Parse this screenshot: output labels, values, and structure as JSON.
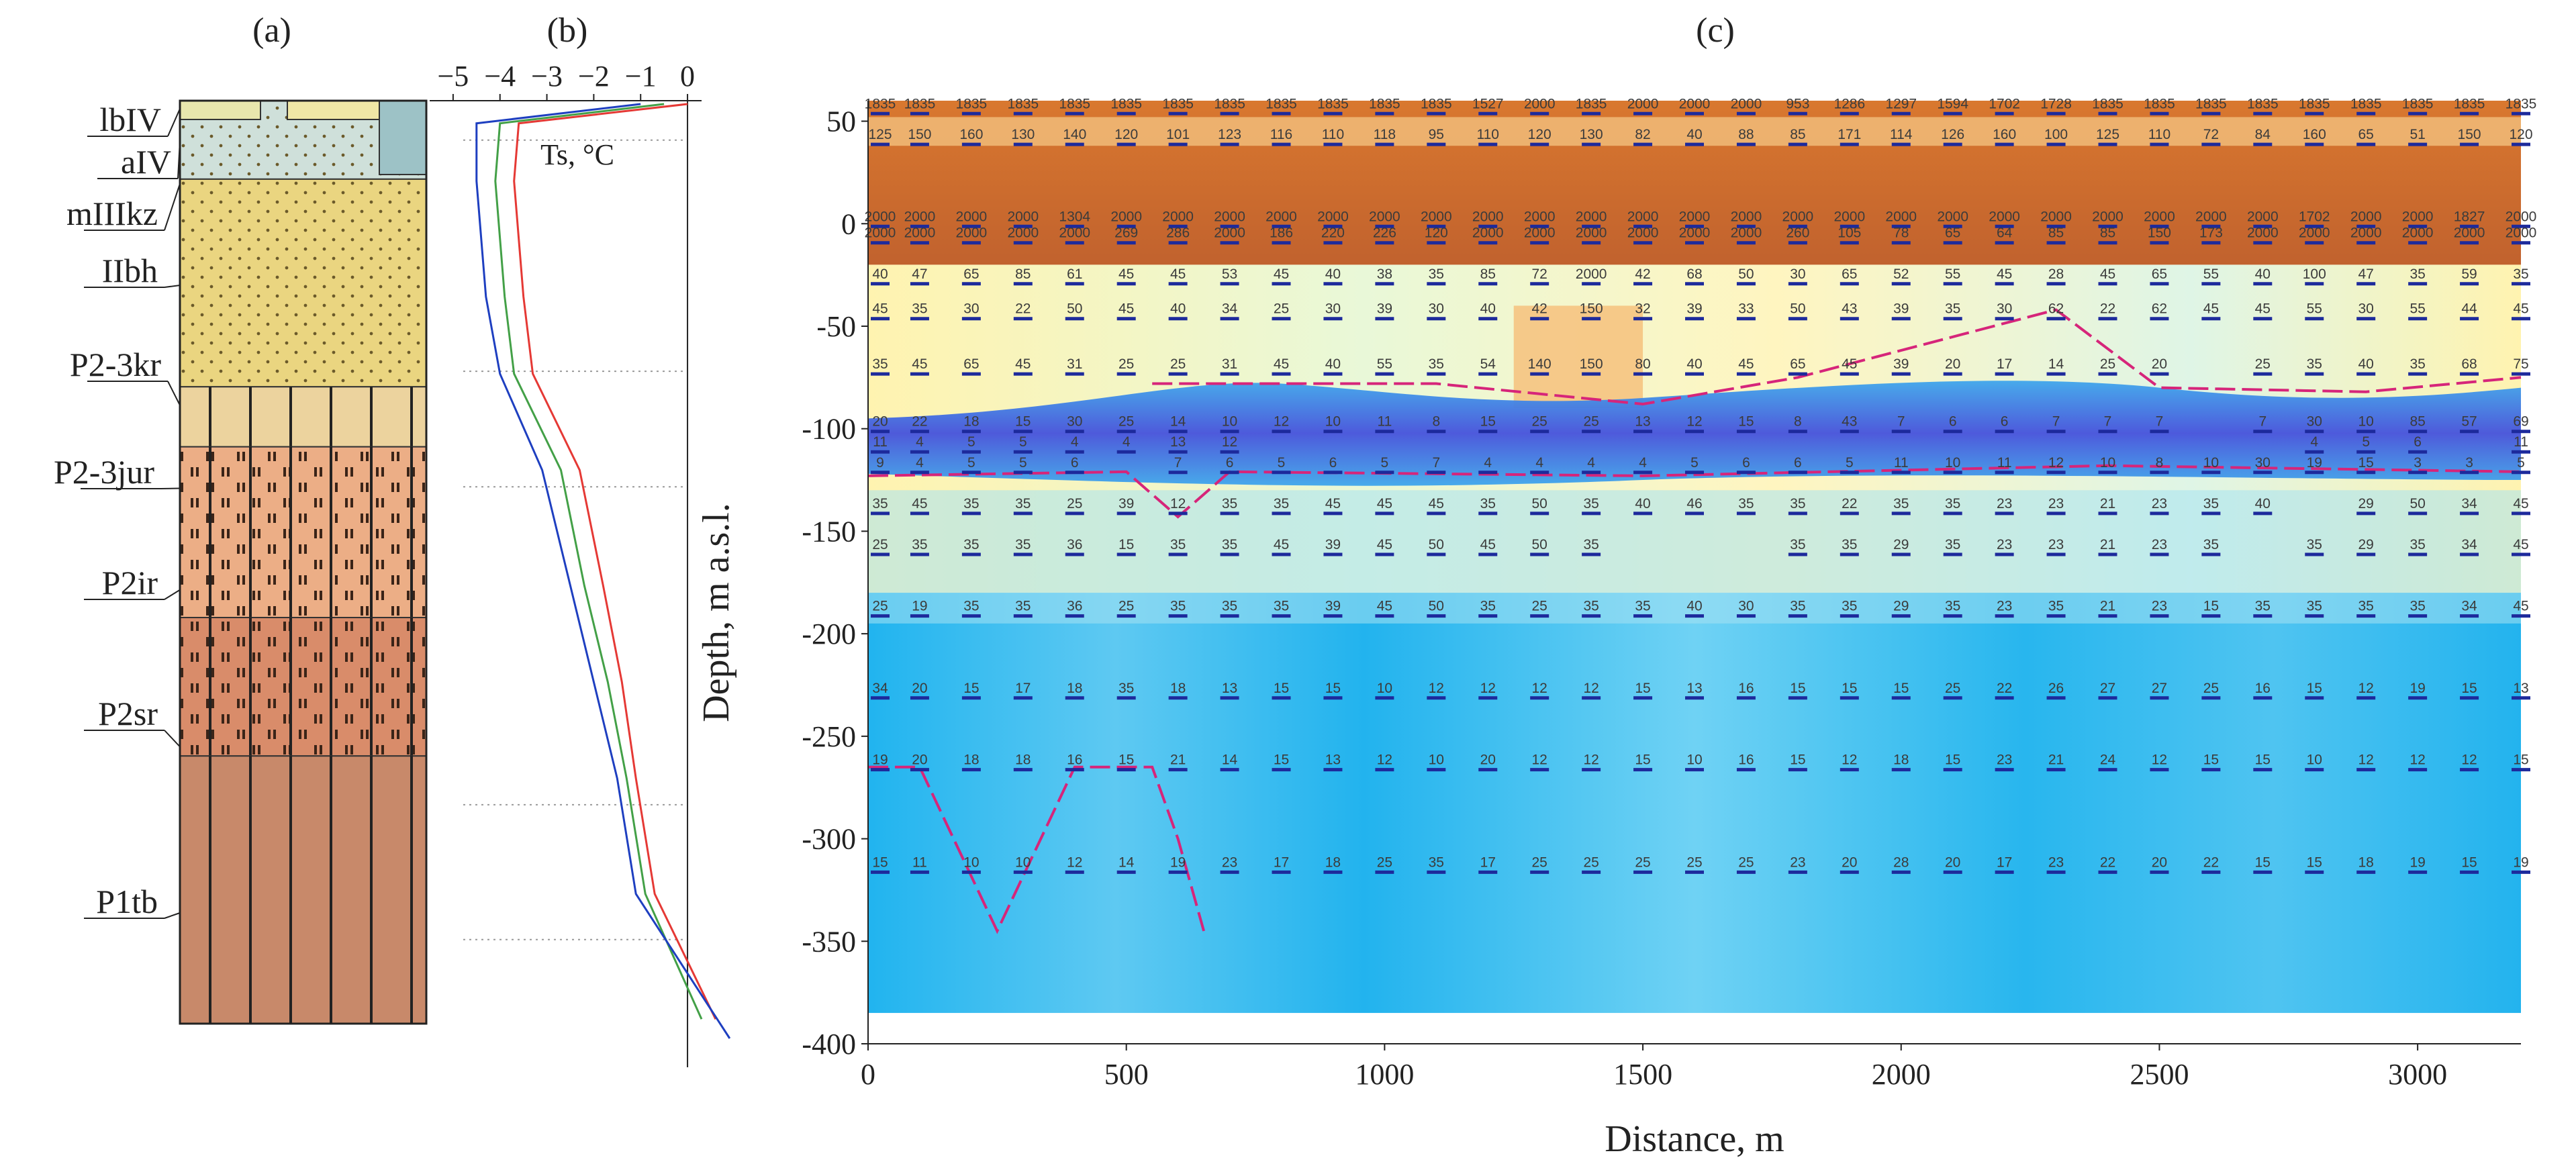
{
  "panel_labels": {
    "a": "(a)",
    "b": "(b)",
    "c": "(c)"
  },
  "colors": {
    "permafrost_frozen": "#c1622e",
    "thawed_low": "#2aa9e8",
    "intermediate": "#fff7b3",
    "cryopeg_dark": "#4a4ce0",
    "boundary_marker": "#d6257a",
    "layer_marker": "#1d2a9c"
  },
  "stratigraphy": {
    "layers": [
      {
        "code": "lbIV",
        "top_rel": 0.0,
        "bottom_rel": 0.02,
        "fill": "#cfe0da"
      },
      {
        "code": "aIV",
        "top_rel": 0.0,
        "bottom_rel": 0.085,
        "fill": "#cfe0da"
      },
      {
        "code": "mIIIkz",
        "top_rel": 0.085,
        "bottom_rel": 0.135,
        "fill": "#ead580"
      },
      {
        "code": "IIbh",
        "top_rel": 0.135,
        "bottom_rel": 0.31,
        "fill": "#ead580"
      },
      {
        "code": "P2-3kr",
        "top_rel": 0.31,
        "bottom_rel": 0.375,
        "fill": "#ecd39e"
      },
      {
        "code": "P2-3jur",
        "top_rel": 0.375,
        "bottom_rel": 0.5,
        "fill": "#ecae86"
      },
      {
        "code": "P2ir",
        "top_rel": 0.5,
        "bottom_rel": 0.56,
        "fill": "#ecae86"
      },
      {
        "code": "P2sr",
        "top_rel": 0.56,
        "bottom_rel": 0.71,
        "fill": "#d98c6a"
      },
      {
        "code": "P1tb",
        "top_rel": 0.71,
        "bottom_rel": 1.0,
        "fill": "#c8896a"
      }
    ]
  },
  "chart_data": [
    {
      "type": "line",
      "title": "(b)",
      "xlabel": "Ts, °C",
      "x_ticks": [
        "−5",
        "−4",
        "−3",
        "−2",
        "−1",
        "0"
      ],
      "xlim": [
        -5.5,
        0.3
      ],
      "ylim_rel": [
        0,
        1
      ],
      "series": [
        {
          "name": "red",
          "color": "#e53935",
          "points": [
            [
              0.0,
              0.0
            ],
            [
              -3.6,
              0.02
            ],
            [
              -3.7,
              0.08
            ],
            [
              -3.5,
              0.2
            ],
            [
              -3.3,
              0.28
            ],
            [
              -2.3,
              0.38
            ],
            [
              -1.8,
              0.5
            ],
            [
              -1.4,
              0.6
            ],
            [
              -1.1,
              0.7
            ],
            [
              -0.7,
              0.82
            ],
            [
              0.6,
              0.95
            ]
          ]
        },
        {
          "name": "green",
          "color": "#43a047",
          "points": [
            [
              -0.5,
              0.0
            ],
            [
              -4.0,
              0.02
            ],
            [
              -4.1,
              0.08
            ],
            [
              -3.9,
              0.2
            ],
            [
              -3.7,
              0.28
            ],
            [
              -2.7,
              0.38
            ],
            [
              -2.2,
              0.5
            ],
            [
              -1.7,
              0.6
            ],
            [
              -1.3,
              0.7
            ],
            [
              -0.9,
              0.82
            ],
            [
              0.3,
              0.95
            ]
          ]
        },
        {
          "name": "blue",
          "color": "#1e3fc0",
          "points": [
            [
              -1.0,
              0.0
            ],
            [
              -4.5,
              0.02
            ],
            [
              -4.5,
              0.08
            ],
            [
              -4.3,
              0.2
            ],
            [
              -4.0,
              0.28
            ],
            [
              -3.1,
              0.38
            ],
            [
              -2.5,
              0.5
            ],
            [
              -2.0,
              0.6
            ],
            [
              -1.5,
              0.7
            ],
            [
              -1.1,
              0.82
            ],
            [
              0.9,
              0.97
            ]
          ]
        }
      ]
    },
    {
      "type": "heatmap",
      "title": "(c)",
      "xlabel": "Distance, m",
      "ylabel": "Depth, m a.s.l.",
      "xlim": [
        0,
        3200
      ],
      "ylim": [
        -400,
        60
      ],
      "x_ticks": [
        "0",
        "500",
        "1000",
        "1500",
        "2000",
        "2500",
        "3000"
      ],
      "x_tick_values": [
        0,
        500,
        1000,
        1500,
        2000,
        2500,
        3000
      ],
      "y_ticks": [
        "50",
        "0",
        "-50",
        "-100",
        "-150",
        "-200",
        "-250",
        "-300",
        "-350",
        "-400"
      ],
      "y_tick_values": [
        50,
        0,
        -50,
        -100,
        -150,
        -200,
        -250,
        -300,
        -350,
        -400
      ],
      "columns_x": [
        0,
        100,
        200,
        300,
        400,
        500,
        600,
        700,
        800,
        900,
        1000,
        1100,
        1200,
        1300,
        1400,
        1500,
        1600,
        1700,
        1800,
        1900,
        2000,
        2100,
        2200,
        2300,
        2400,
        2500,
        2600,
        2700,
        2800,
        2900,
        3000,
        3100,
        3200
      ],
      "resistivity_rows": [
        {
          "depth": 55,
          "values": [
            "1835",
            "1835",
            "1835",
            "1835",
            "1835",
            "1835",
            "1835",
            "1835",
            "1835",
            "1835",
            "1835",
            "1835",
            "1527",
            "2000",
            "1835",
            "2000",
            "2000",
            "2000",
            "953",
            "1286",
            "1297",
            "1594",
            "1702",
            "1728",
            "1835",
            "1835",
            "1835",
            "1835",
            "1835",
            "1835",
            "1835",
            "1835",
            "1835"
          ]
        },
        {
          "depth": 40,
          "values": [
            "125",
            "150",
            "160",
            "130",
            "140",
            "120",
            "101",
            "123",
            "116",
            "110",
            "118",
            "95",
            "110",
            "120",
            "130",
            "82",
            "40",
            "88",
            "85",
            "171",
            "114",
            "126",
            "160",
            "100",
            "125",
            "110",
            "72",
            "84",
            "160",
            "65",
            "51",
            "150",
            "120"
          ]
        },
        {
          "depth": 0,
          "values": [
            "2000",
            "2000",
            "2000",
            "2000",
            "1304",
            "2000",
            "2000",
            "2000",
            "2000",
            "2000",
            "2000",
            "2000",
            "2000",
            "2000",
            "2000",
            "2000",
            "2000",
            "2000",
            "2000",
            "2000",
            "2000",
            "2000",
            "2000",
            "2000",
            "2000",
            "2000",
            "2000",
            "2000",
            "1702",
            "2000",
            "2000",
            "1827",
            "2000"
          ]
        },
        {
          "depth": -8,
          "values": [
            "2000",
            "2000",
            "2000",
            "2000",
            "2000",
            "269",
            "286",
            "2000",
            "186",
            "220",
            "226",
            "120",
            "2000",
            "2000",
            "2000",
            "2000",
            "2000",
            "2000",
            "260",
            "105",
            "78",
            "65",
            "64",
            "85",
            "85",
            "150",
            "173",
            "2000",
            "2000",
            "2000",
            "2000",
            "2000",
            "2000"
          ]
        },
        {
          "depth": -28,
          "values": [
            "40",
            "47",
            "65",
            "85",
            "61",
            "45",
            "45",
            "53",
            "45",
            "40",
            "38",
            "35",
            "85",
            "72",
            "2000",
            "42",
            "68",
            "50",
            "30",
            "65",
            "52",
            "55",
            "45",
            "28",
            "45",
            "65",
            "55",
            "40",
            "100",
            "47",
            "35",
            "59",
            "35"
          ]
        },
        {
          "depth": -45,
          "values": [
            "45",
            "35",
            "30",
            "22",
            "50",
            "45",
            "40",
            "34",
            "25",
            "30",
            "39",
            "30",
            "40",
            "42",
            "150",
            "32",
            "39",
            "33",
            "50",
            "43",
            "39",
            "35",
            "30",
            "62",
            "22",
            "62",
            "45",
            "45",
            "55",
            "30",
            "55",
            "44",
            "45"
          ]
        },
        {
          "depth": -72,
          "values": [
            "35",
            "45",
            "65",
            "45",
            "31",
            "25",
            "25",
            "31",
            "45",
            "40",
            "55",
            "35",
            "54",
            "140",
            "150",
            "80",
            "40",
            "45",
            "65",
            "45",
            "39",
            "20",
            "17",
            "14",
            "25",
            "20",
            "",
            "25",
            "35",
            "40",
            "35",
            "68",
            "75"
          ]
        },
        {
          "depth": -100,
          "values": [
            "20",
            "22",
            "18",
            "15",
            "30",
            "25",
            "14",
            "10",
            "12",
            "10",
            "11",
            "8",
            "15",
            "25",
            "25",
            "13",
            "12",
            "15",
            "8",
            "43",
            "7",
            "6",
            "6",
            "7",
            "7",
            "7",
            "",
            "7",
            "30",
            "10",
            "85",
            "57",
            "69"
          ]
        },
        {
          "depth": -110,
          "values": [
            "11",
            "4",
            "5",
            "5",
            "4",
            "4",
            "13",
            "12",
            "",
            "",
            "",
            "",
            "",
            "",
            "",
            "",
            "",
            "",
            "",
            "",
            "",
            "",
            "",
            "",
            "",
            "",
            "",
            "",
            "4",
            "5",
            "6",
            "",
            "11"
          ]
        },
        {
          "depth": -120,
          "values": [
            "9",
            "4",
            "5",
            "5",
            "6",
            "",
            "7",
            "6",
            "5",
            "6",
            "5",
            "7",
            "4",
            "4",
            "4",
            "4",
            "5",
            "6",
            "6",
            "5",
            "11",
            "10",
            "11",
            "12",
            "10",
            "8",
            "10",
            "30",
            "19",
            "15",
            "3",
            "3",
            "5"
          ]
        },
        {
          "depth": -140,
          "values": [
            "35",
            "45",
            "35",
            "35",
            "25",
            "39",
            "12",
            "35",
            "35",
            "45",
            "45",
            "45",
            "35",
            "50",
            "35",
            "40",
            "46",
            "35",
            "35",
            "22",
            "35",
            "35",
            "23",
            "23",
            "21",
            "23",
            "35",
            "40",
            "",
            "29",
            "50",
            "34",
            "45"
          ]
        },
        {
          "depth": -160,
          "values": [
            "25",
            "35",
            "35",
            "35",
            "36",
            "15",
            "35",
            "35",
            "45",
            "39",
            "45",
            "50",
            "45",
            "50",
            "35",
            "",
            "",
            "",
            "35",
            "35",
            "29",
            "35",
            "23",
            "23",
            "21",
            "23",
            "35",
            "",
            "35",
            "29",
            "35",
            "34",
            "45"
          ]
        },
        {
          "depth": -190,
          "values": [
            "25",
            "19",
            "35",
            "35",
            "36",
            "25",
            "35",
            "35",
            "35",
            "39",
            "45",
            "50",
            "35",
            "25",
            "35",
            "35",
            "40",
            "30",
            "35",
            "35",
            "29",
            "35",
            "23",
            "35",
            "21",
            "23",
            "15",
            "35",
            "35",
            "35",
            "35",
            "34",
            "45"
          ]
        },
        {
          "depth": -230,
          "values": [
            "34",
            "20",
            "15",
            "17",
            "18",
            "35",
            "18",
            "13",
            "15",
            "15",
            "10",
            "12",
            "12",
            "12",
            "12",
            "15",
            "13",
            "16",
            "15",
            "15",
            "15",
            "25",
            "22",
            "26",
            "27",
            "27",
            "25",
            "16",
            "15",
            "12",
            "19",
            "15",
            "13"
          ]
        },
        {
          "depth": -265,
          "values": [
            "19",
            "20",
            "18",
            "18",
            "16",
            "15",
            "21",
            "14",
            "15",
            "13",
            "12",
            "10",
            "20",
            "12",
            "12",
            "15",
            "10",
            "16",
            "15",
            "12",
            "18",
            "15",
            "23",
            "21",
            "24",
            "12",
            "15",
            "15",
            "10",
            "12",
            "12",
            "12",
            "15"
          ]
        },
        {
          "depth": -315,
          "values": [
            "15",
            "11",
            "10",
            "10",
            "12",
            "14",
            "19",
            "23",
            "17",
            "18",
            "25",
            "35",
            "17",
            "25",
            "25",
            "25",
            "25",
            "25",
            "23",
            "20",
            "28",
            "20",
            "17",
            "23",
            "22",
            "20",
            "22",
            "15",
            "15",
            "18",
            "19",
            "15",
            "19"
          ]
        }
      ]
    }
  ]
}
